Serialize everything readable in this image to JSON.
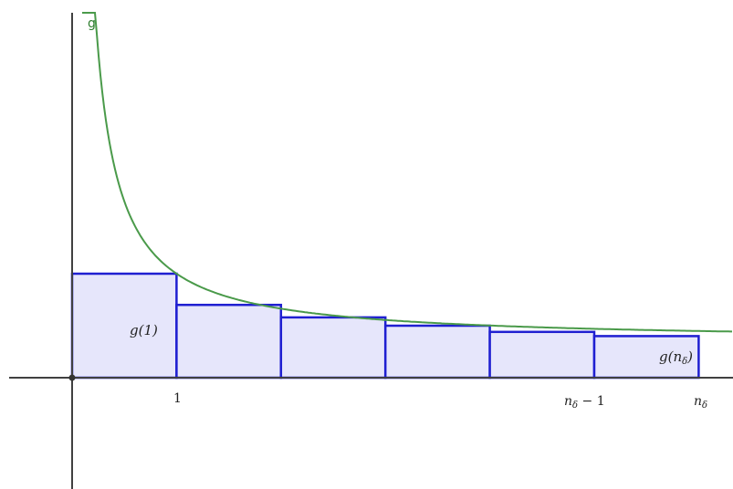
{
  "curve": {
    "name": "g",
    "color": "#4a9a4a"
  },
  "labels": {
    "g_one": "g(1)",
    "g_n_delta_base": "g(n",
    "g_n_delta_sub": "δ",
    "g_n_delta_close": ")"
  },
  "ticks": {
    "one": "1",
    "n_minus_one_base": "n",
    "n_minus_one_sub": "δ",
    "n_minus_one_rest": " − 1",
    "n_base": "n",
    "n_sub": "δ"
  },
  "colors": {
    "bar_fill": "#e6e6fb",
    "bar_stroke": "#1f1fd1",
    "axis": "#404040"
  },
  "chart_data": {
    "type": "bar",
    "bar_width": 1,
    "bars": [
      {
        "x_start": 0,
        "height": 1
      },
      {
        "x_start": 1,
        "height": 0.7
      },
      {
        "x_start": 2,
        "height": 0.58
      },
      {
        "x_start": 3,
        "height": 0.5
      },
      {
        "x_start": 4,
        "height": 0.44
      },
      {
        "x_start": 5,
        "height": 0.4
      }
    ]
  }
}
